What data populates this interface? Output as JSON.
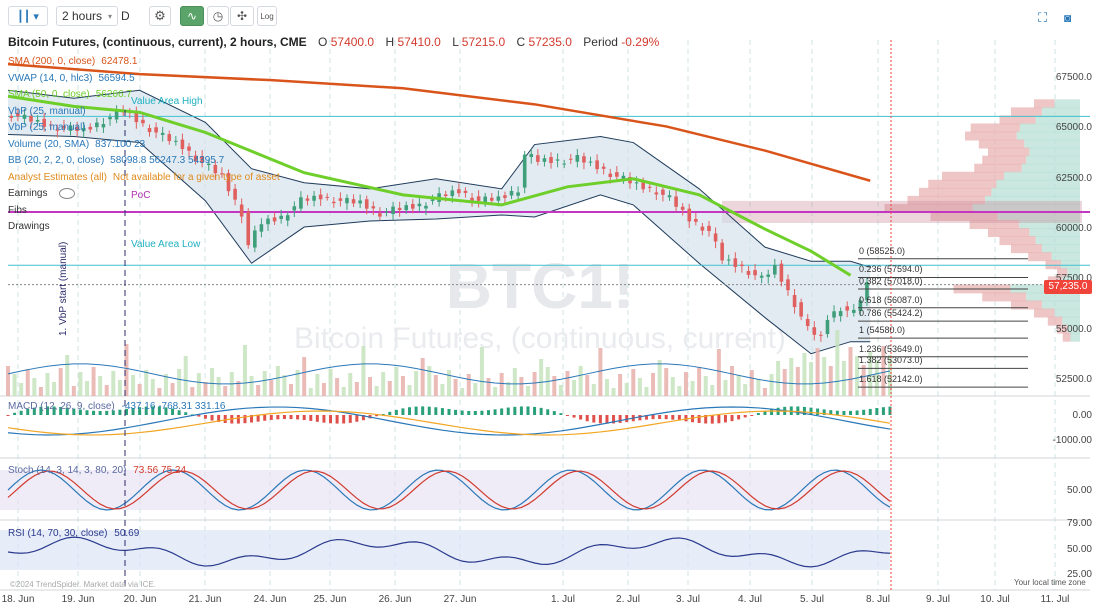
{
  "toolbar": {
    "interval": "2 hours",
    "interval_suffix": "D",
    "log_label": "Log"
  },
  "header": {
    "symbol_title": "Bitcoin Futures, (continuous, current), 2 hours, CME",
    "ohlc": {
      "o_label": "O",
      "o": "57400.0",
      "h_label": "H",
      "h": "57410.0",
      "l_label": "L",
      "l": "57215.0",
      "c_label": "C",
      "c": "57235.0",
      "period_label": "Period",
      "period": "-0.29%"
    }
  },
  "legend": [
    {
      "text": "SMA (200, 0, close)",
      "value": "62478.1",
      "color": "#d9541a"
    },
    {
      "text": "VWAP (14, 0, hlc3)",
      "value": "56594.5",
      "color": "#2a78b8"
    },
    {
      "text": "SMA (50, 0, close)",
      "value": "56266.7",
      "color": "#6fcf2a"
    },
    {
      "text": "VbP (25, manual)",
      "value": "",
      "color": "#2a78b8"
    },
    {
      "text": "VbP (25, manual)",
      "value": "",
      "color": "#2a78b8"
    },
    {
      "text": "Volume (20, SMA)",
      "value": "837.100 23",
      "color": "#2a78b8"
    },
    {
      "text": "BB (20, 2, 2, 0, close)",
      "value": "58098.8  56247.3  54395.7",
      "color": "#2a78b8"
    },
    {
      "text": "Analyst Estimates (all)",
      "value": "Not available for a given type of asset",
      "color": "#e08a1c"
    },
    {
      "text": "Earnings",
      "value": "",
      "color": "#333"
    },
    {
      "text": "Fibs",
      "value": "",
      "color": "#333"
    },
    {
      "text": "Drawings",
      "value": "",
      "color": "#333"
    }
  ],
  "annotations": {
    "value_area_high": "Value Area High",
    "value_area_low": "Value Area Low",
    "poc": "PoC",
    "vbp_start": "1. VbP start (manual)",
    "watermark_big": "BTC1!",
    "watermark_small": "Bitcoin Futures, (continuous, current)",
    "copyright": "©2024 TrendSpider. Market data via ICE.",
    "timezone": "Your local time zone"
  },
  "colors": {
    "sma200": "#d9541a",
    "sma50": "#6fcf2a",
    "bb": "#1f3b5a",
    "bbfill": "#cfdde9",
    "vwap": "#2a78b8",
    "up": "#3f9f7a",
    "down": "#e06060",
    "poc": "#c236c2",
    "vah": "#40c0d0",
    "price_tag": "#f0433a",
    "macd": "#2a78b8",
    "signal": "#f2a623",
    "stoch_k": "#2a78b8",
    "stoch_d": "#d03a2e",
    "rsi": "#2a3a8c"
  },
  "chart_data": {
    "type": "line",
    "title": "Bitcoin Futures, (continuous, current), 2 hours, CME",
    "x_ticks": [
      "18. Jun",
      "19. Jun",
      "20. Jun",
      "21. Jun",
      "24. Jun",
      "25. Jun",
      "26. Jun",
      "27. Jun",
      "1. Jul",
      "2. Jul",
      "3. Jul",
      "4. Jul",
      "5. Jul",
      "8. Jul",
      "9. Jul",
      "10. Jul",
      "11. Jul"
    ],
    "price_axis": {
      "ticks": [
        "67500.0",
        "65000.0",
        "62500.0",
        "60000.0",
        "57500.0",
        "55000.0",
        "52500.0"
      ],
      "ylim": [
        51700,
        69000
      ],
      "current_price": "57,235.0",
      "current_value": 57235
    },
    "price_levels": {
      "value_area_high": 65600,
      "value_area_low": 58200,
      "poc": 60850
    },
    "fibonacci": [
      {
        "label": "0 (58525.0)",
        "value": 58525
      },
      {
        "label": "0.236 (57594.0)",
        "value": 57594
      },
      {
        "label": "0.382 (57018.0)",
        "value": 57018
      },
      {
        "label": "0.618 (56087.0)",
        "value": 56087
      },
      {
        "label": "0.786 (55424.2)",
        "value": 55424.2
      },
      {
        "label": "1 (54580.0)",
        "value": 54580
      },
      {
        "label": "1.236 (53649.0)",
        "value": 53649
      },
      {
        "label": "1.382 (53073.0)",
        "value": 53073
      },
      {
        "label": "1.618 (52142.0)",
        "value": 52142
      }
    ],
    "close_series": [
      [
        0,
        65800
      ],
      [
        3,
        65500
      ],
      [
        6,
        65200
      ],
      [
        9,
        65000
      ],
      [
        12,
        64900
      ],
      [
        15,
        65400
      ],
      [
        18,
        65900
      ],
      [
        21,
        65200
      ],
      [
        24,
        64600
      ],
      [
        27,
        64100
      ],
      [
        30,
        63300
      ],
      [
        33,
        62600
      ],
      [
        36,
        60800
      ],
      [
        37,
        59200
      ],
      [
        39,
        60300
      ],
      [
        42,
        60600
      ],
      [
        45,
        61400
      ],
      [
        48,
        61600
      ],
      [
        51,
        61400
      ],
      [
        54,
        61300
      ],
      [
        57,
        60800
      ],
      [
        60,
        61000
      ],
      [
        63,
        61200
      ],
      [
        66,
        61600
      ],
      [
        69,
        61900
      ],
      [
        72,
        61400
      ],
      [
        75,
        61500
      ],
      [
        78,
        62000
      ],
      [
        79,
        63700
      ],
      [
        81,
        63400
      ],
      [
        84,
        63400
      ],
      [
        87,
        63500
      ],
      [
        90,
        63100
      ],
      [
        93,
        62600
      ],
      [
        96,
        62200
      ],
      [
        99,
        61900
      ],
      [
        101,
        61500
      ],
      [
        104,
        60500
      ],
      [
        107,
        59900
      ],
      [
        109,
        58500
      ],
      [
        112,
        58100
      ],
      [
        115,
        57500
      ],
      [
        117,
        58100
      ],
      [
        120,
        56300
      ],
      [
        122,
        55000
      ],
      [
        124,
        54600
      ],
      [
        125,
        55600
      ],
      [
        127,
        56100
      ],
      [
        129,
        55800
      ],
      [
        131,
        57235
      ]
    ],
    "sma200": [
      [
        0,
        68200
      ],
      [
        20,
        67700
      ],
      [
        40,
        67400
      ],
      [
        60,
        67000
      ],
      [
        80,
        66200
      ],
      [
        100,
        65100
      ],
      [
        115,
        63900
      ],
      [
        131,
        62400
      ]
    ],
    "sma50": [
      [
        0,
        66600
      ],
      [
        10,
        66100
      ],
      [
        20,
        65800
      ],
      [
        30,
        64800
      ],
      [
        45,
        62800
      ],
      [
        60,
        61700
      ],
      [
        75,
        61200
      ],
      [
        85,
        62100
      ],
      [
        95,
        62500
      ],
      [
        105,
        61700
      ],
      [
        115,
        60000
      ],
      [
        122,
        58900
      ],
      [
        128,
        57700
      ]
    ],
    "bb_upper": [
      [
        0,
        66900
      ],
      [
        10,
        66500
      ],
      [
        20,
        66900
      ],
      [
        30,
        65300
      ],
      [
        37,
        63000
      ],
      [
        45,
        62300
      ],
      [
        55,
        62000
      ],
      [
        65,
        62500
      ],
      [
        75,
        62000
      ],
      [
        80,
        64200
      ],
      [
        90,
        64600
      ],
      [
        95,
        64300
      ],
      [
        105,
        62000
      ],
      [
        115,
        59100
      ],
      [
        122,
        58400
      ],
      [
        128,
        58400
      ],
      [
        131,
        58100
      ]
    ],
    "bb_lower": [
      [
        0,
        64700
      ],
      [
        10,
        64600
      ],
      [
        20,
        64300
      ],
      [
        30,
        61400
      ],
      [
        37,
        58300
      ],
      [
        45,
        60100
      ],
      [
        55,
        60400
      ],
      [
        65,
        60500
      ],
      [
        75,
        60700
      ],
      [
        80,
        60600
      ],
      [
        90,
        61700
      ],
      [
        95,
        61200
      ],
      [
        105,
        58300
      ],
      [
        115,
        55600
      ],
      [
        122,
        53800
      ],
      [
        128,
        54400
      ],
      [
        131,
        54400
      ]
    ],
    "macd": {
      "label": "MACD (12, 26, 9, close)",
      "values": "-437.16  -768.31  331.16",
      "ticks": [
        "0.00",
        "-1000.00"
      ]
    },
    "stoch": {
      "label": "Stoch (14, 3, 14, 3, 80, 20)",
      "values": "73.56  75.24",
      "ticks": [
        "50.00"
      ]
    },
    "rsi": {
      "label": "RSI (14, 70, 30, close)",
      "value": "50.69",
      "ticks": [
        "79.00",
        "50.00",
        "25.00"
      ]
    }
  }
}
